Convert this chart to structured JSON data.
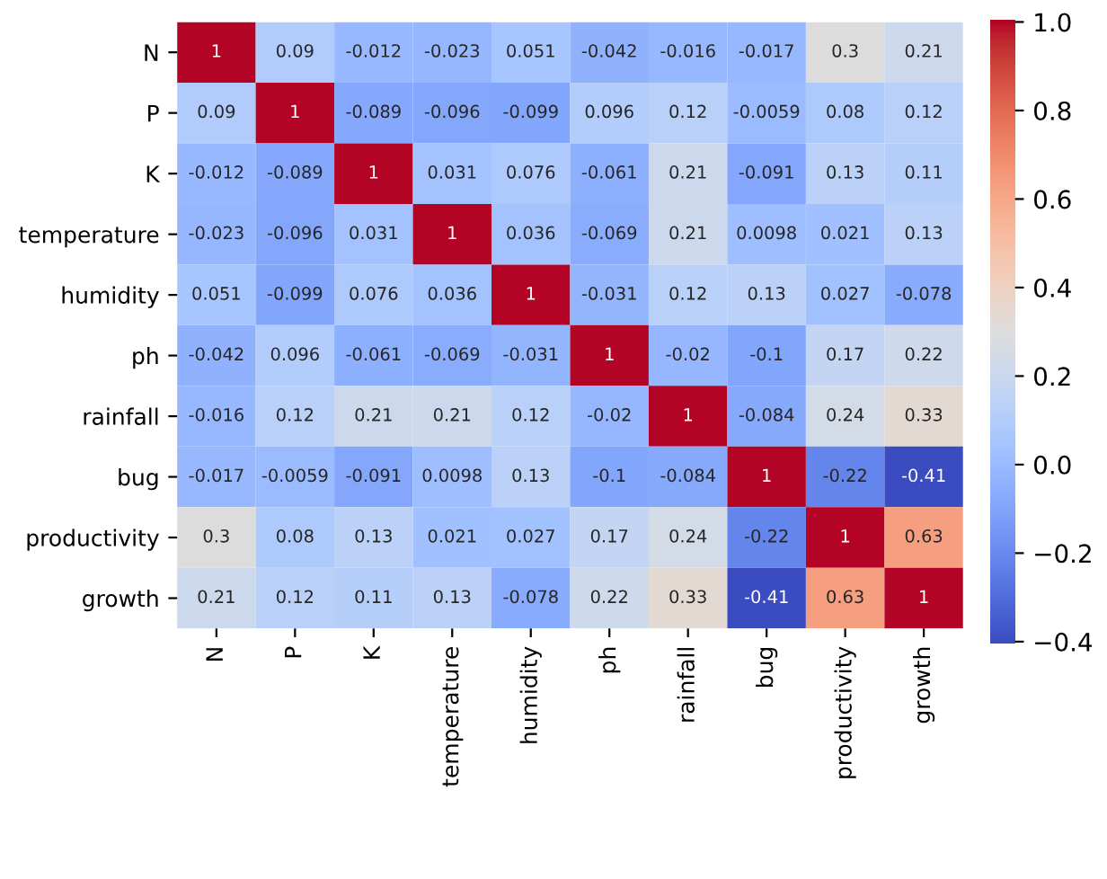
{
  "chart_data": {
    "type": "heatmap",
    "categories": [
      "N",
      "P",
      "K",
      "temperature",
      "humidity",
      "ph",
      "rainfall",
      "bug",
      "productivity",
      "growth"
    ],
    "y_categories": [
      "N",
      "P",
      "K",
      "temperature",
      "humidity",
      "ph",
      "rainfall",
      "bug",
      "productivity",
      "growth"
    ],
    "cells": [
      [
        1,
        0.09,
        -0.012,
        -0.023,
        0.051,
        -0.042,
        -0.016,
        -0.017,
        0.3,
        0.21
      ],
      [
        0.09,
        1,
        -0.089,
        -0.096,
        -0.099,
        0.096,
        0.12,
        -0.0059,
        0.08,
        0.12
      ],
      [
        -0.012,
        -0.089,
        1,
        0.031,
        0.076,
        -0.061,
        0.21,
        -0.091,
        0.13,
        0.11
      ],
      [
        -0.023,
        -0.096,
        0.031,
        1,
        0.036,
        -0.069,
        0.21,
        0.0098,
        0.021,
        0.13
      ],
      [
        0.051,
        -0.099,
        0.076,
        0.036,
        1,
        -0.031,
        0.12,
        0.13,
        0.027,
        -0.078
      ],
      [
        -0.042,
        0.096,
        -0.061,
        -0.069,
        -0.031,
        1,
        -0.02,
        -0.1,
        0.17,
        0.22
      ],
      [
        -0.016,
        0.12,
        0.21,
        0.21,
        0.12,
        -0.02,
        1,
        -0.084,
        0.24,
        0.33
      ],
      [
        -0.017,
        -0.0059,
        -0.091,
        0.0098,
        0.13,
        -0.1,
        -0.084,
        1,
        -0.22,
        -0.41
      ],
      [
        0.3,
        0.08,
        0.13,
        0.021,
        0.027,
        0.17,
        0.24,
        -0.22,
        1,
        0.63
      ],
      [
        0.21,
        0.12,
        0.11,
        0.13,
        -0.078,
        0.22,
        0.33,
        -0.41,
        0.63,
        1
      ]
    ],
    "data_labels": true,
    "clim": [
      -0.41,
      1
    ],
    "cticks": [
      {
        "value": -0.4,
        "label": "−0.4"
      },
      {
        "value": -0.2,
        "label": "−0.2"
      },
      {
        "value": 0,
        "label": "0.0"
      },
      {
        "value": 0.2,
        "label": "0.2"
      },
      {
        "value": 0.4,
        "label": "0.4"
      },
      {
        "value": 0.6,
        "label": "0.6"
      },
      {
        "value": 0.8,
        "label": "0.8"
      },
      {
        "value": 1,
        "label": "1.0"
      }
    ]
  }
}
